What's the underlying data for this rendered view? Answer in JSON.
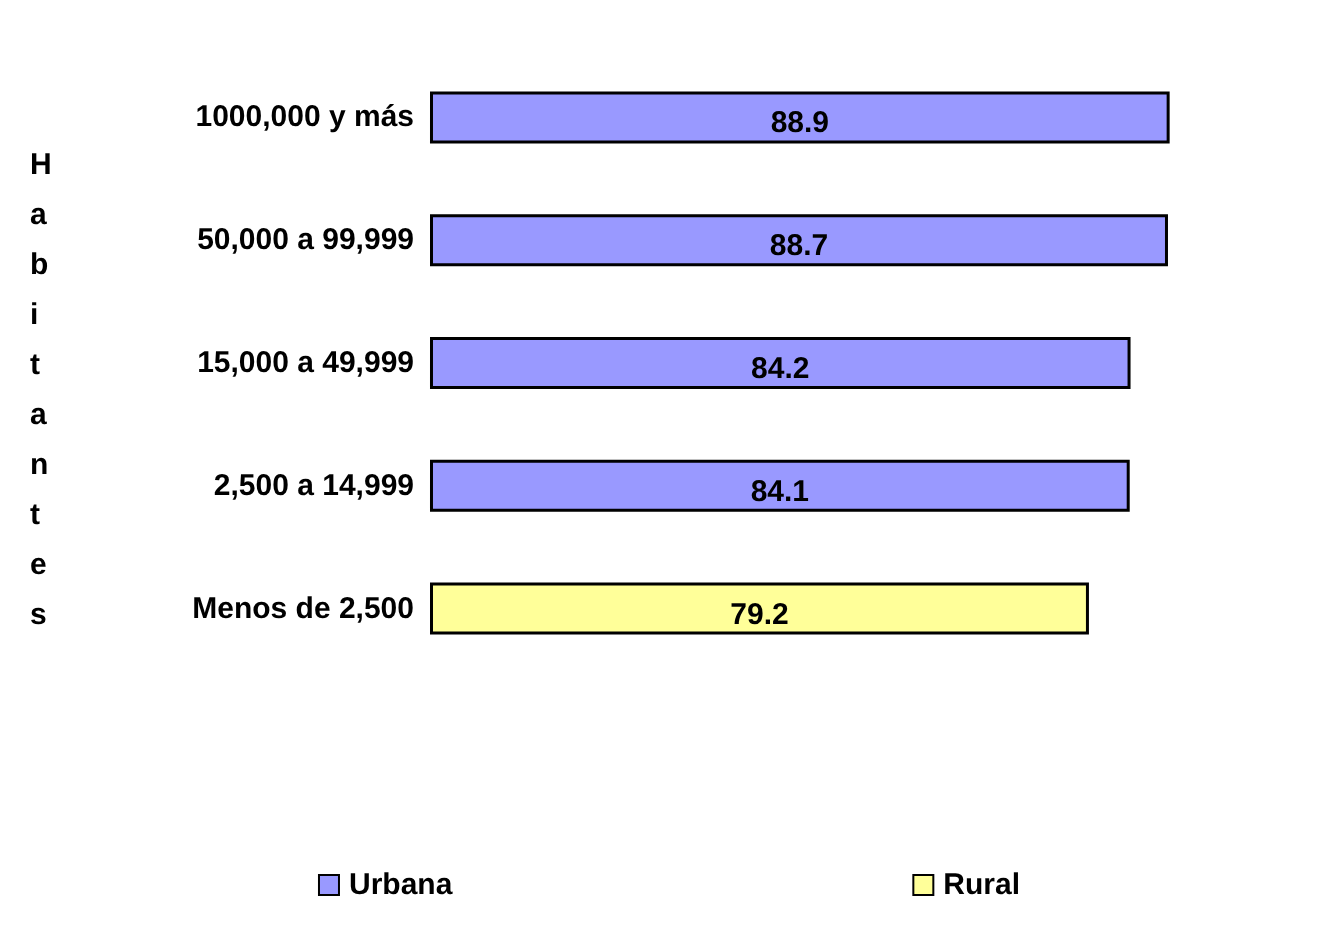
{
  "chart_data": {
    "type": "bar",
    "orientation": "horizontal",
    "ylabel": "Habitantes",
    "categories": [
      "1000,000 y más",
      "50,000 a 99,999",
      "15,000 a 49,999",
      "2,500 a 14,999",
      "Menos de 2,500"
    ],
    "series": [
      {
        "name": "Urbana",
        "color": "#9999ff",
        "values": [
          88.9,
          88.7,
          84.2,
          84.1,
          null
        ]
      },
      {
        "name": "Rural",
        "color": "#ffff99",
        "values": [
          null,
          null,
          null,
          null,
          79.2
        ]
      }
    ],
    "data_labels": true,
    "legend": "bottom",
    "grid": false
  }
}
